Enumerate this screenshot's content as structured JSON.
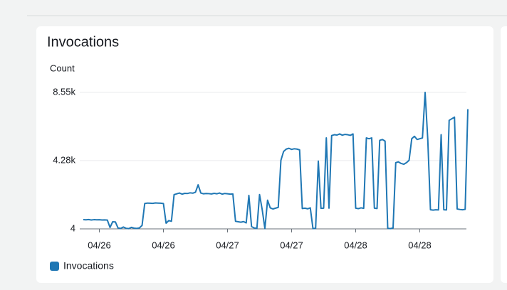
{
  "chart_data": {
    "type": "line",
    "title": "Invocations",
    "y_label": "Count",
    "xlim": [
      0,
      72
    ],
    "xticks": [
      {
        "value": 3,
        "label": "04/26"
      },
      {
        "value": 15,
        "label": "04/26"
      },
      {
        "value": 27,
        "label": "04/27"
      },
      {
        "value": 39,
        "label": "04/27"
      },
      {
        "value": 51,
        "label": "04/28"
      },
      {
        "value": 63,
        "label": "04/28"
      }
    ],
    "ylim": [
      4,
      8550
    ],
    "yticks": [
      4,
      {
        "value": 4280,
        "label": "4.28k"
      },
      {
        "value": 8550,
        "label": "8.55k"
      }
    ],
    "grid": true,
    "x": [
      0,
      0.5,
      1,
      1.5,
      2,
      2.5,
      3,
      3.5,
      4,
      4.5,
      5,
      5.5,
      6,
      6.5,
      7,
      7.5,
      8,
      8.5,
      9,
      9.5,
      10,
      10.5,
      11,
      11.5,
      12,
      12.5,
      13,
      13.5,
      14,
      14.5,
      15,
      15.5,
      16,
      16.5,
      17,
      17.5,
      18,
      18.5,
      19,
      19.5,
      20,
      20.5,
      21,
      21.5,
      22,
      22.5,
      23,
      23.5,
      24,
      24.5,
      25,
      25.5,
      26,
      26.5,
      27,
      27.5,
      28,
      28.5,
      29,
      29.5,
      30,
      30.5,
      31,
      31.5,
      32,
      32.5,
      33,
      33.5,
      34,
      34.5,
      35,
      35.5,
      36,
      36.5,
      37,
      37.5,
      38,
      38.5,
      39,
      39.5,
      40,
      40.5,
      41,
      41.5,
      42,
      42.5,
      43,
      43.5,
      44,
      44.5,
      45,
      45.5,
      46,
      46.5,
      47,
      47.5,
      48,
      48.5,
      49,
      49.5,
      50,
      50.5,
      51,
      51.5,
      52,
      52.5,
      53,
      53.5,
      54,
      54.5,
      55,
      55.5,
      56,
      56.5,
      57,
      57.5,
      58,
      58.5,
      59,
      59.5,
      60,
      60.5,
      61,
      61.5,
      62,
      62.5,
      63,
      63.5,
      64,
      64.5,
      65,
      65.5,
      66,
      66.5,
      67,
      67.5,
      68,
      68.5,
      69,
      69.5,
      70,
      70.5,
      71,
      71.5,
      72
    ],
    "series": [
      {
        "name": "Invocations",
        "color": "#1f77b4",
        "values": [
          580,
          570,
          590,
          560,
          580,
          570,
          575,
          560,
          565,
          555,
          90,
          450,
          440,
          60,
          30,
          120,
          40,
          20,
          100,
          50,
          30,
          60,
          220,
          1590,
          1620,
          1610,
          1600,
          1630,
          1620,
          1610,
          1590,
          360,
          520,
          480,
          2150,
          2200,
          2250,
          2180,
          2230,
          2220,
          2260,
          2240,
          2300,
          2760,
          2250,
          2200,
          2220,
          2210,
          2190,
          2230,
          2200,
          2250,
          2180,
          2220,
          2200,
          2180,
          2190,
          480,
          450,
          420,
          460,
          380,
          2100,
          150,
          60,
          30,
          2150,
          1200,
          20,
          1800,
          1320,
          1250,
          1300,
          1350,
          4300,
          4850,
          5000,
          5050,
          4980,
          5020,
          5000,
          4950,
          1280,
          1300,
          1260,
          1320,
          20,
          40,
          4250,
          1290,
          1300,
          5700,
          1300,
          5850,
          5900,
          5880,
          5950,
          5870,
          5920,
          5900,
          5860,
          5950,
          1300,
          1270,
          1320,
          1290,
          5700,
          5650,
          5700,
          1300,
          1280,
          5550,
          5600,
          5500,
          40,
          20,
          60,
          4150,
          4200,
          4100,
          4050,
          4150,
          4300,
          5650,
          5800,
          5600,
          5650,
          5700,
          8550,
          5600,
          1200,
          1180,
          1200,
          1190,
          5900,
          1200,
          1190,
          6800,
          6900,
          7000,
          1250,
          1220,
          1200,
          1230,
          7500
        ]
      }
    ]
  }
}
